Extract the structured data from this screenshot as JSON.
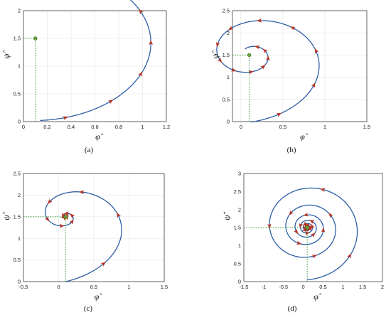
{
  "chart_data": [
    {
      "type": "line",
      "panel_label": "(a)",
      "xlabel": "φ̂",
      "ylabel": "ψ̂",
      "xlim": [
        0,
        1.2
      ],
      "ylim": [
        0,
        2
      ],
      "xticks": [
        "0",
        "0.2",
        "0.4",
        "0.6",
        "0.8",
        "1",
        "1.2"
      ],
      "yticks": [
        "0",
        "0.5",
        "1",
        "1.5",
        "2"
      ],
      "grid": true,
      "start_point": [
        0.1,
        1.5
      ],
      "trajectory": {
        "center": [
          0.14,
          1.5
        ],
        "amplitude": 1.02,
        "decay": 0.06,
        "turns": 0.9,
        "flatten_y": 1.45
      },
      "arrows": 12
    },
    {
      "type": "line",
      "panel_label": "(b)",
      "xlabel": "φ̂",
      "ylabel": "ψ̂",
      "xlim": [
        -0.1,
        1.5
      ],
      "ylim": [
        0,
        2.5
      ],
      "xticks": [
        "0",
        "0.5",
        "1",
        "1.5"
      ],
      "yticks": [
        "0",
        "0.5",
        "1",
        "1.5",
        "2",
        "2.5"
      ],
      "grid": true,
      "start_point": [
        0.1,
        1.5
      ],
      "trajectory": {
        "center": [
          0.12,
          1.5
        ],
        "amplitude": 1.12,
        "decay": 0.22,
        "turns": 1.6,
        "flatten_y": 1.35
      },
      "arrows": 14
    },
    {
      "type": "line",
      "panel_label": "(c)",
      "xlabel": "φ̂",
      "ylabel": "ψ̂",
      "xlim": [
        -0.5,
        1.5
      ],
      "ylim": [
        0,
        2.5
      ],
      "xticks": [
        "-0.5",
        "0",
        "0.5",
        "1",
        "1.5"
      ],
      "yticks": [
        "0",
        "0.5",
        "1",
        "1.5",
        "2",
        "2.5"
      ],
      "grid": true,
      "start_point": [
        0.1,
        1.5
      ],
      "trajectory": {
        "center": [
          0.1,
          1.5
        ],
        "amplitude": 1.25,
        "decay": 0.32,
        "turns": 3.0,
        "flatten_y": 1.2
      },
      "arrows": 16
    },
    {
      "type": "line",
      "panel_label": "(d)",
      "xlabel": "φ̂",
      "ylabel": "ψ̂",
      "xlim": [
        -1.5,
        2
      ],
      "ylim": [
        0,
        3
      ],
      "xticks": [
        "-1.5",
        "-1",
        "-0.5",
        "0",
        "0.5",
        "1",
        "1.5",
        "2"
      ],
      "yticks": [
        "0",
        "0.5",
        "1",
        "1.5",
        "2",
        "2.5",
        "3"
      ],
      "grid": false,
      "start_point": [
        0.1,
        1.5
      ],
      "trajectory": {
        "center": [
          0.1,
          1.5
        ],
        "amplitude": 1.45,
        "decay": 0.09,
        "turns": 14.0,
        "flatten_y": 1.0
      },
      "arrows": 26
    }
  ],
  "colors": {
    "curve": "#2b5ea8",
    "arrows": "#b83224",
    "guide": "#2f9a2f",
    "start": "#6aa33a"
  }
}
